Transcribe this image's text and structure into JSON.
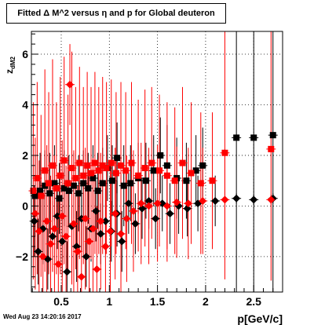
{
  "title": "Fitted Δ M^2 versus η and p for Global deuteron",
  "footer": "Wed Aug 23 14:20:16 2017",
  "colors": {
    "black_series": "#000000",
    "red_series": "#ff0000",
    "grid": "#000000"
  },
  "chart_data": {
    "type": "scatter",
    "title": "Fitted Δ M^2 versus η and p for Global deuteron",
    "xlabel": "p[GeV/c]",
    "ylabel": "z_dM2",
    "xlim": [
      0.19,
      2.8
    ],
    "ylim": [
      -3.4,
      6.9
    ],
    "xticks": [
      0.5,
      1,
      1.5,
      2,
      2.5
    ],
    "xtick_labels": [
      "0.5",
      "1",
      "1.5",
      "2",
      "2.5"
    ],
    "yticks": [
      -2,
      0,
      2,
      4,
      6
    ],
    "ytick_labels": [
      "−2",
      "0",
      "2",
      "4",
      "6"
    ],
    "grid": true,
    "series": [
      {
        "color": "#000000",
        "marker": "square",
        "points": [
          {
            "x": 0.23,
            "y": 0.4,
            "err": 1.6
          },
          {
            "x": 0.28,
            "y": 0.6,
            "err": 1.5
          },
          {
            "x": 0.33,
            "y": 0.8,
            "err": 1.4
          },
          {
            "x": 0.38,
            "y": 0.5,
            "err": 1.6
          },
          {
            "x": 0.43,
            "y": 0.9,
            "err": 1.5
          },
          {
            "x": 0.48,
            "y": 0.3,
            "err": 1.4
          },
          {
            "x": 0.53,
            "y": 0.7,
            "err": 1.5
          },
          {
            "x": 0.58,
            "y": 0.6,
            "err": 1.4
          },
          {
            "x": 0.63,
            "y": 0.8,
            "err": 1.3
          },
          {
            "x": 0.68,
            "y": 0.5,
            "err": 1.5
          },
          {
            "x": 0.73,
            "y": 0.9,
            "err": 1.3
          },
          {
            "x": 0.78,
            "y": 0.7,
            "err": 1.4
          },
          {
            "x": 0.83,
            "y": 1.1,
            "err": 1.3
          },
          {
            "x": 0.88,
            "y": 0.6,
            "err": 1.5
          },
          {
            "x": 0.93,
            "y": 0.9,
            "err": 1.4
          },
          {
            "x": 0.98,
            "y": 1.5,
            "err": 1.3
          },
          {
            "x": 1.03,
            "y": 1.0,
            "err": 1.4
          },
          {
            "x": 1.08,
            "y": 1.9,
            "err": 1.4
          },
          {
            "x": 1.15,
            "y": 0.8,
            "err": 1.6
          },
          {
            "x": 1.22,
            "y": 0.9,
            "err": 1.5
          },
          {
            "x": 1.3,
            "y": 1.1,
            "err": 1.4
          },
          {
            "x": 1.38,
            "y": 1.0,
            "err": 1.5
          },
          {
            "x": 1.46,
            "y": 1.4,
            "err": 1.4
          },
          {
            "x": 1.53,
            "y": 2.0,
            "err": 1.5
          },
          {
            "x": 1.6,
            "y": 1.6,
            "err": 1.6
          },
          {
            "x": 1.7,
            "y": 1.1,
            "err": 1.6
          },
          {
            "x": 1.8,
            "y": 1.0,
            "err": 1.5
          },
          {
            "x": 1.9,
            "y": 1.4,
            "err": 1.4
          },
          {
            "x": 1.97,
            "y": 1.6,
            "err": 1.5
          },
          {
            "x": 2.32,
            "y": 2.7,
            "err": 7.5
          },
          {
            "x": 2.5,
            "y": 2.7,
            "err": 7.5
          },
          {
            "x": 2.7,
            "y": 2.8,
            "err": 7.5
          }
        ]
      },
      {
        "color": "#000000",
        "marker": "diamond",
        "points": [
          {
            "x": 0.22,
            "y": -0.6,
            "err": 1.4
          },
          {
            "x": 0.26,
            "y": -1.8,
            "err": 1.3
          },
          {
            "x": 0.31,
            "y": -0.9,
            "err": 1.4
          },
          {
            "x": 0.36,
            "y": -2.1,
            "err": 1.2
          },
          {
            "x": 0.41,
            "y": -1.2,
            "err": 1.4
          },
          {
            "x": 0.46,
            "y": -0.4,
            "err": 1.3
          },
          {
            "x": 0.51,
            "y": -1.4,
            "err": 1.4
          },
          {
            "x": 0.56,
            "y": -2.6,
            "err": 1.2
          },
          {
            "x": 0.61,
            "y": -0.8,
            "err": 1.3
          },
          {
            "x": 0.66,
            "y": -1.6,
            "err": 1.4
          },
          {
            "x": 0.71,
            "y": -0.5,
            "err": 1.3
          },
          {
            "x": 0.76,
            "y": -2.0,
            "err": 1.2
          },
          {
            "x": 0.81,
            "y": -0.9,
            "err": 1.3
          },
          {
            "x": 0.86,
            "y": -0.2,
            "err": 1.2
          },
          {
            "x": 0.91,
            "y": -1.1,
            "err": 1.2
          },
          {
            "x": 0.96,
            "y": -0.6,
            "err": 1.3
          },
          {
            "x": 1.02,
            "y": -1.0,
            "err": 1.2
          },
          {
            "x": 1.08,
            "y": -0.3,
            "err": 1.3
          },
          {
            "x": 1.13,
            "y": -1.4,
            "err": 1.2
          },
          {
            "x": 1.2,
            "y": 0.1,
            "err": 1.2
          },
          {
            "x": 1.27,
            "y": -0.7,
            "err": 1.2
          },
          {
            "x": 1.34,
            "y": -0.1,
            "err": 1.2
          },
          {
            "x": 1.41,
            "y": 0.2,
            "err": 1.1
          },
          {
            "x": 1.48,
            "y": -0.5,
            "err": 1.2
          },
          {
            "x": 1.55,
            "y": 0.1,
            "err": 1.1
          },
          {
            "x": 1.63,
            "y": -0.3,
            "err": 1.2
          },
          {
            "x": 1.72,
            "y": 0.0,
            "err": 1.1
          },
          {
            "x": 1.81,
            "y": -0.1,
            "err": 1.1
          },
          {
            "x": 1.92,
            "y": 0.1,
            "err": 1.1
          },
          {
            "x": 2.1,
            "y": 0.2,
            "err": 1.0
          },
          {
            "x": 2.32,
            "y": 0.3,
            "err": 0.2
          },
          {
            "x": 2.5,
            "y": 0.25,
            "err": 0.2
          },
          {
            "x": 2.7,
            "y": 0.3,
            "err": 0.2
          }
        ]
      },
      {
        "color": "#ff0000",
        "marker": "square",
        "points": [
          {
            "x": 0.21,
            "y": 0.6,
            "err": 3.5
          },
          {
            "x": 0.25,
            "y": 1.1,
            "err": 3.8
          },
          {
            "x": 0.29,
            "y": 0.4,
            "err": 3.2
          },
          {
            "x": 0.33,
            "y": 1.4,
            "err": 4.0
          },
          {
            "x": 0.37,
            "y": 0.9,
            "err": 3.6
          },
          {
            "x": 0.41,
            "y": 1.6,
            "err": 4.2
          },
          {
            "x": 0.45,
            "y": 0.7,
            "err": 3.4
          },
          {
            "x": 0.49,
            "y": 1.2,
            "err": 3.9
          },
          {
            "x": 0.53,
            "y": 1.8,
            "err": 4.1
          },
          {
            "x": 0.57,
            "y": 0.9,
            "err": 3.5
          },
          {
            "x": 0.61,
            "y": 1.5,
            "err": 4.6
          },
          {
            "x": 0.65,
            "y": 1.1,
            "err": 3.6
          },
          {
            "x": 0.69,
            "y": 1.7,
            "err": 3.8
          },
          {
            "x": 0.73,
            "y": 1.2,
            "err": 3.5
          },
          {
            "x": 0.77,
            "y": 1.6,
            "err": 3.7
          },
          {
            "x": 0.81,
            "y": 1.3,
            "err": 3.4
          },
          {
            "x": 0.85,
            "y": 1.7,
            "err": 3.6
          },
          {
            "x": 0.89,
            "y": 1.4,
            "err": 3.3
          },
          {
            "x": 0.93,
            "y": 1.6,
            "err": 3.5
          },
          {
            "x": 0.97,
            "y": 1.5,
            "err": 3.4
          },
          {
            "x": 1.02,
            "y": 1.7,
            "err": 3.3
          },
          {
            "x": 1.07,
            "y": 1.3,
            "err": 3.2
          },
          {
            "x": 1.12,
            "y": 1.6,
            "err": 3.3
          },
          {
            "x": 1.17,
            "y": 1.4,
            "err": 3.1
          },
          {
            "x": 1.23,
            "y": 1.7,
            "err": 3.2
          },
          {
            "x": 1.3,
            "y": 1.2,
            "err": 3.0
          },
          {
            "x": 1.37,
            "y": 1.5,
            "err": 3.1
          },
          {
            "x": 1.44,
            "y": 1.7,
            "err": 3.0
          },
          {
            "x": 1.52,
            "y": 1.4,
            "err": 3.0
          },
          {
            "x": 1.6,
            "y": 1.2,
            "err": 2.9
          },
          {
            "x": 1.68,
            "y": 1.0,
            "err": 2.9
          },
          {
            "x": 1.76,
            "y": 1.7,
            "err": 3.0
          },
          {
            "x": 1.85,
            "y": 1.3,
            "err": 2.8
          },
          {
            "x": 1.95,
            "y": 0.9,
            "err": 2.8
          },
          {
            "x": 2.07,
            "y": 1.0,
            "err": 2.7
          },
          {
            "x": 2.2,
            "y": 2.1,
            "err": 5.0
          },
          {
            "x": 2.68,
            "y": 2.25,
            "err": 5.2
          }
        ]
      },
      {
        "color": "#ff0000",
        "marker": "diamond",
        "points": [
          {
            "x": 0.23,
            "y": -0.3,
            "err": 3.0
          },
          {
            "x": 0.27,
            "y": -1.0,
            "err": 2.8
          },
          {
            "x": 0.31,
            "y": -2.0,
            "err": 2.6
          },
          {
            "x": 0.35,
            "y": -0.6,
            "err": 3.0
          },
          {
            "x": 0.39,
            "y": -1.5,
            "err": 2.7
          },
          {
            "x": 0.43,
            "y": -0.9,
            "err": 2.9
          },
          {
            "x": 0.47,
            "y": -2.3,
            "err": 2.5
          },
          {
            "x": 0.51,
            "y": -0.4,
            "err": 3.0
          },
          {
            "x": 0.55,
            "y": -1.2,
            "err": 2.8
          },
          {
            "x": 0.59,
            "y": 4.8,
            "err": 1.6
          },
          {
            "x": 0.63,
            "y": -0.7,
            "err": 2.9
          },
          {
            "x": 0.67,
            "y": -1.8,
            "err": 2.6
          },
          {
            "x": 0.71,
            "y": -2.8,
            "err": 2.4
          },
          {
            "x": 0.75,
            "y": -0.5,
            "err": 2.8
          },
          {
            "x": 0.79,
            "y": -1.4,
            "err": 2.7
          },
          {
            "x": 0.83,
            "y": -0.9,
            "err": 2.8
          },
          {
            "x": 0.87,
            "y": -2.5,
            "err": 2.5
          },
          {
            "x": 0.91,
            "y": -0.6,
            "err": 2.7
          },
          {
            "x": 0.96,
            "y": -1.6,
            "err": 2.6
          },
          {
            "x": 1.01,
            "y": -1.0,
            "err": 2.7
          },
          {
            "x": 1.06,
            "y": -0.3,
            "err": 2.6
          },
          {
            "x": 1.12,
            "y": -1.1,
            "err": 2.5
          },
          {
            "x": 1.18,
            "y": -0.5,
            "err": 2.5
          },
          {
            "x": 1.25,
            "y": -0.2,
            "err": 2.4
          },
          {
            "x": 1.33,
            "y": 0.1,
            "err": 2.4
          },
          {
            "x": 1.41,
            "y": 0.0,
            "err": 2.3
          },
          {
            "x": 1.5,
            "y": 0.1,
            "err": 2.3
          },
          {
            "x": 1.6,
            "y": 0.0,
            "err": 2.2
          },
          {
            "x": 1.7,
            "y": 0.15,
            "err": 2.2
          },
          {
            "x": 1.82,
            "y": 0.1,
            "err": 2.2
          },
          {
            "x": 1.97,
            "y": 0.2,
            "err": 2.1
          },
          {
            "x": 2.2,
            "y": 0.25,
            "err": 2.0
          },
          {
            "x": 2.68,
            "y": 0.25,
            "err": 0.2
          }
        ]
      }
    ]
  }
}
